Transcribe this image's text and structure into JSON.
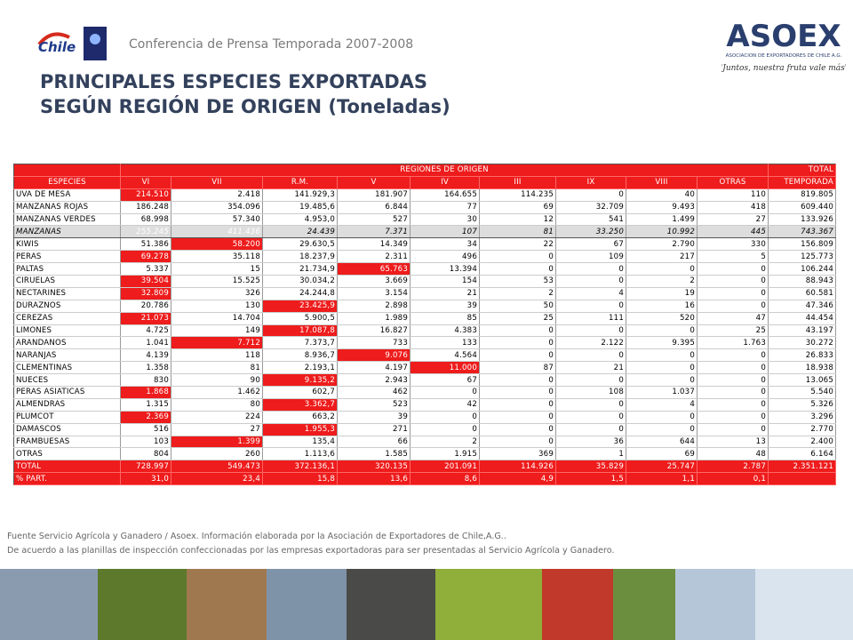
{
  "header": {
    "event": "Conferencia de Prensa Temporada 2007-2008",
    "left_logo": "Chile",
    "right_logo": {
      "name": "ASOEX",
      "subtitle": "ASOCIACION DE EXPORTADORES DE CHILE A.G.",
      "slogan": "\"Juntos, nuestra fruta vale más\""
    }
  },
  "title": [
    "PRINCIPALES ESPECIES EXPORTADAS",
    "SEGÚN REGIÓN DE ORIGEN (Toneladas)"
  ],
  "table": {
    "group_header": [
      "REGIONES DE ORIGEN",
      "TOTAL"
    ],
    "columns": [
      "ESPECIES",
      "VI",
      "VII",
      "R.M.",
      "V",
      "IV",
      "III",
      "IX",
      "VIII",
      "OTRAS",
      "TEMPORADA"
    ],
    "rows": [
      [
        "UVA DE MESA",
        "214.510",
        "2.418",
        "141.929,3",
        "181.907",
        "164.655",
        "114.235",
        "0",
        "40",
        "110",
        "819.805"
      ],
      [
        "MANZANAS ROJAS",
        "186.248",
        "354.096",
        "19.485,6",
        "6.844",
        "77",
        "69",
        "32.709",
        "9.493",
        "418",
        "609.440"
      ],
      [
        "MANZANAS VERDES",
        "68.998",
        "57.340",
        "4.953,0",
        "527",
        "30",
        "12",
        "541",
        "1.499",
        "27",
        "133.926"
      ],
      [
        "MANZANAS",
        "255.245",
        "411.436",
        "24.439",
        "7.371",
        "107",
        "81",
        "33.250",
        "10.992",
        "445",
        "743.367"
      ],
      [
        "KIWIS",
        "51.386",
        "58.200",
        "29.630,5",
        "14.349",
        "34",
        "22",
        "67",
        "2.790",
        "330",
        "156.809"
      ],
      [
        "PERAS",
        "69.278",
        "35.118",
        "18.237,9",
        "2.311",
        "496",
        "0",
        "109",
        "217",
        "5",
        "125.773"
      ],
      [
        "PALTAS",
        "5.337",
        "15",
        "21.734,9",
        "65.763",
        "13.394",
        "0",
        "0",
        "0",
        "0",
        "106.244"
      ],
      [
        "CIRUELAS",
        "39.504",
        "15.525",
        "30.034,2",
        "3.669",
        "154",
        "53",
        "0",
        "2",
        "0",
        "88.943"
      ],
      [
        "NECTARINES",
        "32.809",
        "326",
        "24.244,8",
        "3.154",
        "21",
        "2",
        "4",
        "19",
        "0",
        "60.581"
      ],
      [
        "DURAZNOS",
        "20.786",
        "130",
        "23.425,9",
        "2.898",
        "39",
        "50",
        "0",
        "16",
        "0",
        "47.346"
      ],
      [
        "CEREZAS",
        "21.073",
        "14.704",
        "5.900,5",
        "1.989",
        "85",
        "25",
        "111",
        "520",
        "47",
        "44.454"
      ],
      [
        "LIMONES",
        "4.725",
        "149",
        "17.087,8",
        "16.827",
        "4.383",
        "0",
        "0",
        "0",
        "25",
        "43.197"
      ],
      [
        "ARANDANOS",
        "1.041",
        "7.712",
        "7.373,7",
        "733",
        "133",
        "0",
        "2.122",
        "9.395",
        "1.763",
        "30.272"
      ],
      [
        "NARANJAS",
        "4.139",
        "118",
        "8.936,7",
        "9.076",
        "4.564",
        "0",
        "0",
        "0",
        "0",
        "26.833"
      ],
      [
        "CLEMENTINAS",
        "1.358",
        "81",
        "2.193,1",
        "4.197",
        "11.000",
        "87",
        "21",
        "0",
        "0",
        "18.938"
      ],
      [
        "NUECES",
        "830",
        "90",
        "9.135,2",
        "2.943",
        "67",
        "0",
        "0",
        "0",
        "0",
        "13.065"
      ],
      [
        "PERAS ASIATICAS",
        "1.868",
        "1.462",
        "602,7",
        "462",
        "0",
        "0",
        "108",
        "1.037",
        "0",
        "5.540"
      ],
      [
        "ALMENDRAS",
        "1.315",
        "80",
        "3.362,7",
        "523",
        "42",
        "0",
        "0",
        "4",
        "0",
        "5.326"
      ],
      [
        "PLUMCOT",
        "2.369",
        "224",
        "663,2",
        "39",
        "0",
        "0",
        "0",
        "0",
        "0",
        "3.296"
      ],
      [
        "DAMASCOS",
        "516",
        "27",
        "1.955,3",
        "271",
        "0",
        "0",
        "0",
        "0",
        "0",
        "2.770"
      ],
      [
        "FRAMBUESAS",
        "103",
        "1.399",
        "135,4",
        "66",
        "2",
        "0",
        "36",
        "644",
        "13",
        "2.400"
      ],
      [
        "OTRAS",
        "804",
        "260",
        "1.113,6",
        "1.585",
        "1.915",
        "369",
        "1",
        "69",
        "48",
        "6.164"
      ],
      [
        "TOTAL",
        "728.997",
        "549.473",
        "372.136,1",
        "320.135",
        "201.091",
        "114.926",
        "35.829",
        "25.747",
        "2.787",
        "2.351.121"
      ],
      [
        "% PART.",
        "31,0",
        "23,4",
        "15,8",
        "13,6",
        "8,6",
        "4,9",
        "1,5",
        "1,1",
        "0,1",
        null
      ]
    ]
  },
  "footer": [
    "Fuente Servicio Agrícola y Ganadero / Asoex. Información elaborada por la Asociación de Exportadores de Chile,A.G..",
    "De acuerdo a las planillas de inspección confeccionadas por las empresas exportadoras  para ser presentadas al Servicio Agrícola y Ganadero."
  ]
}
